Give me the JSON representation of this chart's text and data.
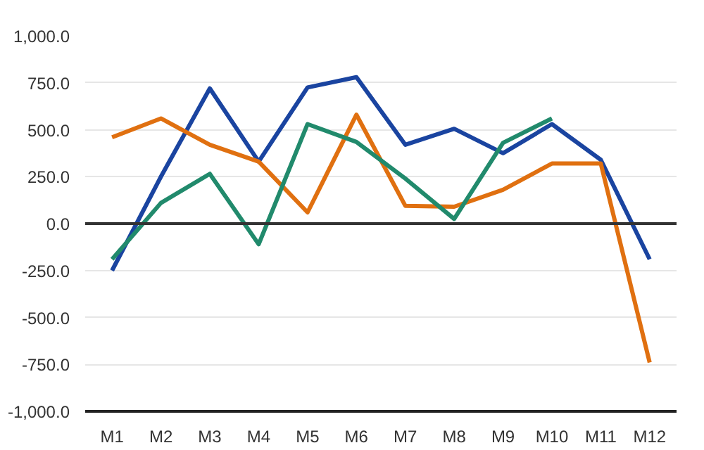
{
  "chart_data": {
    "type": "line",
    "categories": [
      "M1",
      "M2",
      "M3",
      "M4",
      "M5",
      "M6",
      "M7",
      "M8",
      "M9",
      "M10",
      "M11",
      "M12"
    ],
    "series": [
      {
        "color": "#1a44a0",
        "values": [
          -250,
          250,
          720,
          330,
          725,
          780,
          420,
          505,
          375,
          530,
          340,
          -190
        ]
      },
      {
        "color": "#e07010",
        "values": [
          460,
          560,
          420,
          330,
          60,
          580,
          95,
          90,
          180,
          320,
          320,
          -740
        ]
      },
      {
        "color": "#218a6c",
        "values": [
          -190,
          110,
          265,
          -110,
          530,
          435,
          240,
          25,
          430,
          560,
          null,
          null
        ]
      }
    ],
    "ylim": [
      -1000,
      1000
    ],
    "yticks": [
      {
        "value": -1000,
        "label": "-1,000.0"
      },
      {
        "value": -750,
        "label": "-750.0"
      },
      {
        "value": -500,
        "label": "-500.0"
      },
      {
        "value": -250,
        "label": "-250.0"
      },
      {
        "value": 0,
        "label": "0.0"
      },
      {
        "value": 250,
        "label": "250.0"
      },
      {
        "value": 500,
        "label": "500.0"
      },
      {
        "value": 750,
        "label": "750.0"
      },
      {
        "value": 1000,
        "label": "1,000.0"
      }
    ],
    "ref_lines": [
      {
        "axis": "y",
        "value": 0,
        "color": "#333333"
      }
    ],
    "grid": "y",
    "marker": "none",
    "line_style": "solid"
  }
}
